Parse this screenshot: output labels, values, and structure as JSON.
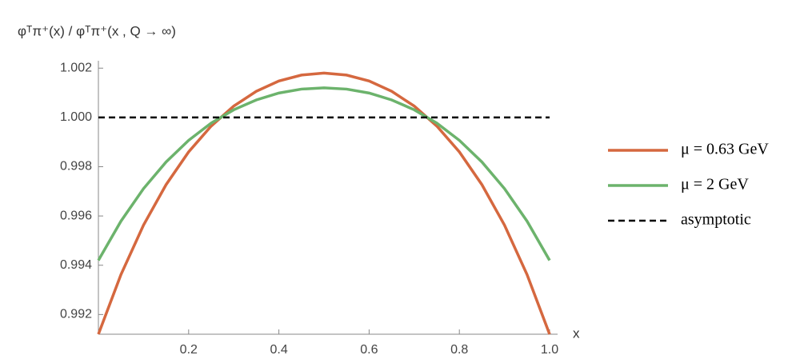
{
  "chart_data": {
    "type": "line",
    "y_label": "φᵀπ⁺(x) / φᵀπ⁺(x , Q → ∞)",
    "x_label": "x",
    "x": [
      0,
      0.05,
      0.1,
      0.15,
      0.2,
      0.25,
      0.3,
      0.35,
      0.4,
      0.45,
      0.5,
      0.55,
      0.6,
      0.65,
      0.7,
      0.75,
      0.8,
      0.85,
      0.9,
      0.95,
      1
    ],
    "series": [
      {
        "name": "μ = 0.63 GeV",
        "color": "#d5683f",
        "dash": false,
        "values": [
          0.9912,
          0.99362,
          0.99563,
          0.99727,
          0.9986,
          0.99965,
          1.00046,
          1.00106,
          1.00148,
          1.00172,
          1.0018,
          1.00172,
          1.00148,
          1.00106,
          1.00046,
          0.99965,
          0.9986,
          0.99727,
          0.99563,
          0.99362,
          0.9912
        ]
      },
      {
        "name": "μ = 2 GeV",
        "color": "#6cb36c",
        "dash": false,
        "values": [
          0.9942,
          0.99579,
          0.99711,
          0.99819,
          0.99907,
          0.99977,
          1.00031,
          1.00071,
          1.00099,
          1.00115,
          1.0012,
          1.00115,
          1.00099,
          1.00071,
          1.00031,
          0.99977,
          0.99907,
          0.99819,
          0.99711,
          0.99579,
          0.9942
        ]
      },
      {
        "name": "asymptotic",
        "color": "#000000",
        "dash": true,
        "values": [
          1,
          1,
          1,
          1,
          1,
          1,
          1,
          1,
          1,
          1,
          1,
          1,
          1,
          1,
          1,
          1,
          1,
          1,
          1,
          1,
          1
        ]
      }
    ],
    "xlim": [
      0,
      1
    ],
    "ylim": [
      0.9912,
      1.0023
    ],
    "xticks": [
      0.2,
      0.4,
      0.6,
      0.8,
      {
        "value": 1,
        "label": "1.0"
      }
    ],
    "yticks": [
      0.992,
      0.994,
      0.996,
      0.998,
      {
        "value": 1,
        "label": "1.000"
      },
      1.002
    ],
    "grid": false,
    "legend": "right"
  }
}
